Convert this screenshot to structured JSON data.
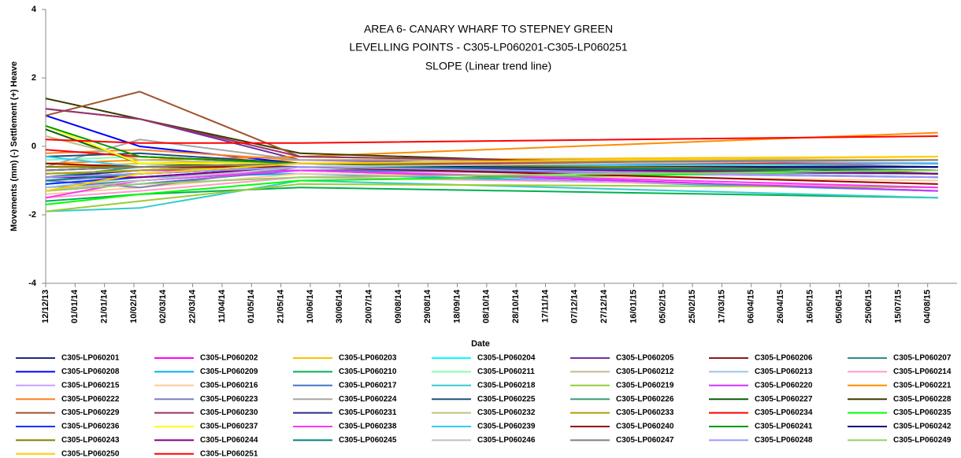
{
  "chart_data": {
    "type": "line",
    "title": [
      "AREA 6- CANARY WHARF TO STEPNEY GREEN",
      "LEVELLING POINTS -  C305-LP060201-C305-LP060251",
      "SLOPE (Linear trend line)"
    ],
    "x_label": "Date",
    "y_label": "Movements (mm) (-) Settlement (+) Heave",
    "x": [
      "2013-12-12",
      "2014-02-14",
      "2014-06-03",
      "2015-08-11"
    ],
    "xlim": [
      "2013-12-12",
      "2015-08-24"
    ],
    "xticks": [
      {
        "value": "2013-12-12",
        "label": "12/12/13"
      },
      {
        "value": "2014-01-01",
        "label": "01/01/14"
      },
      {
        "value": "2014-01-21",
        "label": "21/01/14"
      },
      {
        "value": "2014-02-10",
        "label": "10/02/14"
      },
      {
        "value": "2014-03-02",
        "label": "02/03/14"
      },
      {
        "value": "2014-03-22",
        "label": "22/03/14"
      },
      {
        "value": "2014-04-11",
        "label": "11/04/14"
      },
      {
        "value": "2014-05-01",
        "label": "01/05/14"
      },
      {
        "value": "2014-05-21",
        "label": "21/05/14"
      },
      {
        "value": "2014-06-10",
        "label": "10/06/14"
      },
      {
        "value": "2014-06-30",
        "label": "30/06/14"
      },
      {
        "value": "2014-07-20",
        "label": "20/07/14"
      },
      {
        "value": "2014-08-09",
        "label": "09/08/14"
      },
      {
        "value": "2014-08-29",
        "label": "29/08/14"
      },
      {
        "value": "2014-09-18",
        "label": "18/09/14"
      },
      {
        "value": "2014-10-08",
        "label": "08/10/14"
      },
      {
        "value": "2014-10-28",
        "label": "28/10/14"
      },
      {
        "value": "2014-11-17",
        "label": "17/11/14"
      },
      {
        "value": "2014-12-07",
        "label": "07/12/14"
      },
      {
        "value": "2014-12-27",
        "label": "27/12/14"
      },
      {
        "value": "2015-01-16",
        "label": "16/01/15"
      },
      {
        "value": "2015-02-05",
        "label": "05/02/15"
      },
      {
        "value": "2015-02-25",
        "label": "25/02/15"
      },
      {
        "value": "2015-03-17",
        "label": "17/03/15"
      },
      {
        "value": "2015-04-06",
        "label": "06/04/15"
      },
      {
        "value": "2015-04-26",
        "label": "26/04/15"
      },
      {
        "value": "2015-05-16",
        "label": "16/05/15"
      },
      {
        "value": "2015-06-05",
        "label": "05/06/15"
      },
      {
        "value": "2015-06-25",
        "label": "25/06/15"
      },
      {
        "value": "2015-07-15",
        "label": "15/07/15"
      },
      {
        "value": "2015-08-04",
        "label": "04/08/15"
      }
    ],
    "ylim": [
      -4,
      4
    ],
    "yticks": [
      -4,
      -2,
      0,
      2,
      4
    ],
    "grid": false,
    "series": [
      {
        "name": "C305-LP060201",
        "color": "#1f2a7a",
        "values": [
          -0.9,
          -0.7,
          -0.5,
          -0.5
        ]
      },
      {
        "name": "C305-LP060202",
        "color": "#ff00ff",
        "values": [
          -1.3,
          -1.0,
          -0.7,
          -1.3
        ]
      },
      {
        "name": "C305-LP060203",
        "color": "#ffc000",
        "values": [
          -0.6,
          -0.5,
          -0.4,
          -0.3
        ]
      },
      {
        "name": "C305-LP060204",
        "color": "#00ffff",
        "values": [
          -1.0,
          -0.8,
          -0.6,
          -0.8
        ]
      },
      {
        "name": "C305-LP060205",
        "color": "#7030a0",
        "values": [
          1.1,
          0.8,
          -0.4,
          -0.7
        ]
      },
      {
        "name": "C305-LP060206",
        "color": "#8b1a1a",
        "values": [
          -0.7,
          -0.6,
          -0.5,
          -0.8
        ]
      },
      {
        "name": "C305-LP060207",
        "color": "#2e8b8b",
        "values": [
          -1.2,
          -1.0,
          -0.7,
          -0.6
        ]
      },
      {
        "name": "C305-LP060208",
        "color": "#0000ff",
        "values": [
          0.9,
          0.0,
          -0.5,
          -0.5
        ]
      },
      {
        "name": "C305-LP060209",
        "color": "#00b0f0",
        "values": [
          -1.1,
          -0.9,
          -0.8,
          -1.3
        ]
      },
      {
        "name": "C305-LP060210",
        "color": "#00b050",
        "values": [
          -1.6,
          -1.4,
          -1.2,
          -1.5
        ]
      },
      {
        "name": "C305-LP060211",
        "color": "#80ffb0",
        "values": [
          -0.4,
          -0.3,
          -0.5,
          -0.4
        ]
      },
      {
        "name": "C305-LP060212",
        "color": "#c8b890",
        "values": [
          -0.8,
          -0.7,
          -0.6,
          -0.7
        ]
      },
      {
        "name": "C305-LP060213",
        "color": "#9dc3e6",
        "values": [
          -1.2,
          -0.9,
          -0.7,
          -0.9
        ]
      },
      {
        "name": "C305-LP060214",
        "color": "#ff99cc",
        "values": [
          -1.5,
          -1.3,
          -0.9,
          -1.2
        ]
      },
      {
        "name": "C305-LP060215",
        "color": "#c9a0ff",
        "values": [
          -1.0,
          -0.9,
          -0.7,
          -0.9
        ]
      },
      {
        "name": "C305-LP060216",
        "color": "#ffc89a",
        "values": [
          -1.4,
          -1.2,
          -0.8,
          -1.0
        ]
      },
      {
        "name": "C305-LP060217",
        "color": "#4472c4",
        "values": [
          -1.3,
          -1.1,
          -0.7,
          -0.8
        ]
      },
      {
        "name": "C305-LP060218",
        "color": "#33cccc",
        "values": [
          -1.9,
          -1.8,
          -1.0,
          -1.5
        ]
      },
      {
        "name": "C305-LP060219",
        "color": "#9acd32",
        "values": [
          -1.9,
          -1.6,
          -1.1,
          -1.2
        ]
      },
      {
        "name": "C305-LP060220",
        "color": "#cc33ff",
        "values": [
          -0.8,
          -0.7,
          -0.7,
          -1.3
        ]
      },
      {
        "name": "C305-LP060221",
        "color": "#ff8c00",
        "values": [
          -0.5,
          -0.4,
          -0.3,
          0.4
        ]
      },
      {
        "name": "C305-LP060222",
        "color": "#ff7f27",
        "values": [
          -0.2,
          -0.1,
          -0.4,
          -0.4
        ]
      },
      {
        "name": "C305-LP060223",
        "color": "#7f7fbf",
        "values": [
          -1.0,
          -1.2,
          -0.6,
          -0.7
        ]
      },
      {
        "name": "C305-LP060224",
        "color": "#a6a6a6",
        "values": [
          -0.6,
          0.2,
          -0.4,
          -0.4
        ]
      },
      {
        "name": "C305-LP060225",
        "color": "#1f4e79",
        "values": [
          -0.3,
          -0.2,
          -0.5,
          -0.6
        ]
      },
      {
        "name": "C305-LP060226",
        "color": "#3a9a7a",
        "values": [
          -0.9,
          -0.6,
          -0.5,
          -0.7
        ]
      },
      {
        "name": "C305-LP060227",
        "color": "#0b5a0b",
        "values": [
          0.5,
          -0.5,
          -0.6,
          -0.9
        ]
      },
      {
        "name": "C305-LP060228",
        "color": "#3a3a00",
        "values": [
          1.4,
          0.8,
          -0.2,
          -0.8
        ]
      },
      {
        "name": "C305-LP060229",
        "color": "#a0522d",
        "values": [
          0.9,
          1.6,
          -0.3,
          -0.6
        ]
      },
      {
        "name": "C305-LP060230",
        "color": "#993366",
        "values": [
          1.1,
          0.8,
          -0.3,
          -0.6
        ]
      },
      {
        "name": "C305-LP060231",
        "color": "#2b2b8c",
        "values": [
          -0.7,
          -0.6,
          -0.5,
          -0.6
        ]
      },
      {
        "name": "C305-LP060232",
        "color": "#c0c080",
        "values": [
          0.3,
          -0.4,
          -0.5,
          -0.6
        ]
      },
      {
        "name": "C305-LP060233",
        "color": "#b0a000",
        "values": [
          -0.8,
          -0.7,
          -0.5,
          -0.4
        ]
      },
      {
        "name": "C305-LP060234",
        "color": "#ff0000",
        "values": [
          -0.1,
          -0.3,
          -0.5,
          -0.5
        ]
      },
      {
        "name": "C305-LP060235",
        "color": "#00ff00",
        "values": [
          -1.7,
          -1.4,
          -1.0,
          -0.7
        ]
      },
      {
        "name": "C305-LP060236",
        "color": "#0033ff",
        "values": [
          -1.1,
          -0.9,
          -0.6,
          -0.5
        ]
      },
      {
        "name": "C305-LP060237",
        "color": "#ffff00",
        "values": [
          0.6,
          -0.5,
          -0.5,
          -0.3
        ]
      },
      {
        "name": "C305-LP060238",
        "color": "#ff33ff",
        "values": [
          -1.5,
          -1.0,
          -0.7,
          -1.2
        ]
      },
      {
        "name": "C305-LP060239",
        "color": "#33ccff",
        "values": [
          -0.3,
          -0.6,
          -0.6,
          -0.5
        ]
      },
      {
        "name": "C305-LP060240",
        "color": "#990000",
        "values": [
          -0.5,
          -0.6,
          -0.6,
          -1.1
        ]
      },
      {
        "name": "C305-LP060241",
        "color": "#009900",
        "values": [
          0.6,
          -0.3,
          -0.5,
          -0.8
        ]
      },
      {
        "name": "C305-LP060242",
        "color": "#000080",
        "values": [
          -0.9,
          -0.8,
          -0.6,
          -0.6
        ]
      },
      {
        "name": "C305-LP060243",
        "color": "#808000",
        "values": [
          -0.6,
          -0.6,
          -0.5,
          -0.7
        ]
      },
      {
        "name": "C305-LP060244",
        "color": "#800080",
        "values": [
          -0.9,
          -0.9,
          -0.6,
          -0.8
        ]
      },
      {
        "name": "C305-LP060245",
        "color": "#008080",
        "values": [
          -1.0,
          -0.8,
          -0.6,
          -0.7
        ]
      },
      {
        "name": "C305-LP060246",
        "color": "#c0c0c0",
        "values": [
          -1.3,
          -1.0,
          -0.6,
          -0.4
        ]
      },
      {
        "name": "C305-LP060247",
        "color": "#808080",
        "values": [
          -0.7,
          -0.6,
          -0.5,
          -0.4
        ]
      },
      {
        "name": "C305-LP060248",
        "color": "#9999ff",
        "values": [
          -0.9,
          -0.8,
          -0.6,
          -0.9
        ]
      },
      {
        "name": "C305-LP060249",
        "color": "#99cc66",
        "values": [
          -1.3,
          -1.1,
          -0.9,
          -0.7
        ]
      },
      {
        "name": "C305-LP060250",
        "color": "#ffcc00",
        "values": [
          -1.3,
          -0.8,
          -0.5,
          -0.3
        ]
      },
      {
        "name": "C305-LP060251",
        "color": "#ff0000",
        "values": [
          0.2,
          0.1,
          0.1,
          0.3
        ]
      }
    ]
  }
}
